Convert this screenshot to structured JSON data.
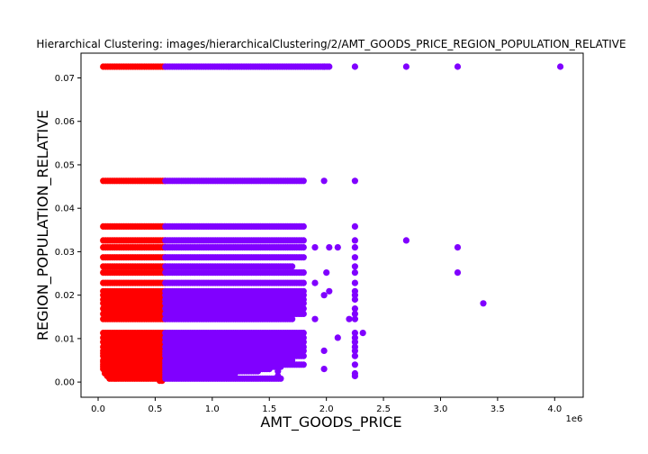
{
  "chart_data": {
    "type": "scatter",
    "title": "Hierarchical Clustering: images/hierarchicalClustering/2/AMT_GOODS_PRICE_REGION_POPULATION_RELATIVE",
    "xlabel": "AMT_GOODS_PRICE",
    "ylabel": "REGION_POPULATION_RELATIVE",
    "x_offset_text": "1e6",
    "xlim": [
      -150000,
      4250000
    ],
    "ylim": [
      -0.0035,
      0.0757
    ],
    "x_ticks": [
      0,
      500000,
      1000000,
      1500000,
      2000000,
      2500000,
      3000000,
      3500000,
      4000000
    ],
    "x_tick_labels": [
      "0.0",
      "0.5",
      "1.0",
      "1.5",
      "2.0",
      "2.5",
      "3.0",
      "3.5",
      "4.0"
    ],
    "y_ticks": [
      0.0,
      0.01,
      0.02,
      0.03,
      0.04,
      0.05,
      0.06,
      0.07
    ],
    "y_tick_labels": [
      "0.00",
      "0.01",
      "0.02",
      "0.03",
      "0.04",
      "0.05",
      "0.06",
      "0.07"
    ],
    "grid": false,
    "legend": "none",
    "colors": {
      "cluster_low_price": "#ff0000",
      "cluster_high_price": "#8000ff"
    },
    "series": [
      {
        "color": "#ff0000",
        "bands": [
          {
            "y": 0.0726,
            "x_min": 45000,
            "x_max": 585000
          },
          {
            "y": 0.0463,
            "x_min": 45000,
            "x_max": 585000
          },
          {
            "y": 0.0358,
            "x_min": 45000,
            "x_max": 585000
          },
          {
            "y": 0.0326,
            "x_min": 45000,
            "x_max": 585000
          },
          {
            "y": 0.031,
            "x_min": 45000,
            "x_max": 585000
          },
          {
            "y": 0.0287,
            "x_min": 45000,
            "x_max": 585000
          },
          {
            "y": 0.0266,
            "x_min": 45000,
            "x_max": 585000
          },
          {
            "y": 0.0252,
            "x_min": 45000,
            "x_max": 585000
          },
          {
            "y": 0.0228,
            "x_min": 45000,
            "x_max": 585000
          },
          {
            "y": 0.0209,
            "x_min": 45000,
            "x_max": 585000
          },
          {
            "y": 0.02,
            "x_min": 45000,
            "x_max": 585000
          },
          {
            "y": 0.019,
            "x_min": 45000,
            "x_max": 585000
          },
          {
            "y": 0.0181,
            "x_min": 45000,
            "x_max": 585000
          },
          {
            "y": 0.0169,
            "x_min": 45000,
            "x_max": 585000
          },
          {
            "y": 0.0157,
            "x_min": 45000,
            "x_max": 585000
          },
          {
            "y": 0.0145,
            "x_min": 45000,
            "x_max": 585000
          },
          {
            "y": 0.0113,
            "x_min": 45000,
            "x_max": 585000
          },
          {
            "y": 0.0102,
            "x_min": 45000,
            "x_max": 585000
          },
          {
            "y": 0.0092,
            "x_min": 45000,
            "x_max": 585000
          },
          {
            "y": 0.0081,
            "x_min": 45000,
            "x_max": 585000
          },
          {
            "y": 0.0072,
            "x_min": 45000,
            "x_max": 585000
          },
          {
            "y": 0.0066,
            "x_min": 45000,
            "x_max": 585000
          },
          {
            "y": 0.006,
            "x_min": 45000,
            "x_max": 585000
          },
          {
            "y": 0.005,
            "x_min": 45000,
            "x_max": 585000
          },
          {
            "y": 0.0046,
            "x_min": 45000,
            "x_max": 585000
          },
          {
            "y": 0.004,
            "x_min": 45000,
            "x_max": 585000
          },
          {
            "y": 0.0035,
            "x_min": 45000,
            "x_max": 585000
          },
          {
            "y": 0.003,
            "x_min": 45000,
            "x_max": 585000
          },
          {
            "y": 0.0025,
            "x_min": 60000,
            "x_max": 585000
          },
          {
            "y": 0.002,
            "x_min": 60000,
            "x_max": 585000
          },
          {
            "y": 0.0014,
            "x_min": 80000,
            "x_max": 585000
          },
          {
            "y": 0.0008,
            "x_min": 100000,
            "x_max": 560000
          },
          {
            "y": 0.0003,
            "x_min": 540000,
            "x_max": 560000
          }
        ]
      },
      {
        "color": "#8000ff",
        "bands": [
          {
            "y": 0.0726,
            "x_min": 590000,
            "x_max": 2025000
          },
          {
            "y": 0.0463,
            "x_min": 590000,
            "x_max": 1800000
          },
          {
            "y": 0.0358,
            "x_min": 590000,
            "x_max": 1800000
          },
          {
            "y": 0.0326,
            "x_min": 590000,
            "x_max": 1800000
          },
          {
            "y": 0.031,
            "x_min": 590000,
            "x_max": 1800000
          },
          {
            "y": 0.0287,
            "x_min": 590000,
            "x_max": 1800000
          },
          {
            "y": 0.0266,
            "x_min": 590000,
            "x_max": 1700000
          },
          {
            "y": 0.0252,
            "x_min": 590000,
            "x_max": 1800000
          },
          {
            "y": 0.0228,
            "x_min": 590000,
            "x_max": 1800000
          },
          {
            "y": 0.0209,
            "x_min": 590000,
            "x_max": 1800000
          },
          {
            "y": 0.02,
            "x_min": 590000,
            "x_max": 1800000
          },
          {
            "y": 0.019,
            "x_min": 590000,
            "x_max": 1800000
          },
          {
            "y": 0.0181,
            "x_min": 590000,
            "x_max": 1800000
          },
          {
            "y": 0.0169,
            "x_min": 590000,
            "x_max": 1800000
          },
          {
            "y": 0.0157,
            "x_min": 590000,
            "x_max": 1800000
          },
          {
            "y": 0.0145,
            "x_min": 590000,
            "x_max": 1700000
          },
          {
            "y": 0.0113,
            "x_min": 590000,
            "x_max": 1800000
          },
          {
            "y": 0.0102,
            "x_min": 590000,
            "x_max": 1800000
          },
          {
            "y": 0.0092,
            "x_min": 590000,
            "x_max": 1800000
          },
          {
            "y": 0.0081,
            "x_min": 590000,
            "x_max": 1800000
          },
          {
            "y": 0.0072,
            "x_min": 590000,
            "x_max": 1800000
          },
          {
            "y": 0.0066,
            "x_min": 590000,
            "x_max": 1700000
          },
          {
            "y": 0.006,
            "x_min": 590000,
            "x_max": 1800000
          },
          {
            "y": 0.005,
            "x_min": 590000,
            "x_max": 1700000
          },
          {
            "y": 0.0046,
            "x_min": 590000,
            "x_max": 1600000
          },
          {
            "y": 0.004,
            "x_min": 590000,
            "x_max": 1800000
          },
          {
            "y": 0.0035,
            "x_min": 590000,
            "x_max": 1600000
          },
          {
            "y": 0.003,
            "x_min": 590000,
            "x_max": 1500000
          },
          {
            "y": 0.0025,
            "x_min": 590000,
            "x_max": 1400000
          },
          {
            "y": 0.002,
            "x_min": 590000,
            "x_max": 1200000
          },
          {
            "y": 0.0014,
            "x_min": 590000,
            "x_max": 900000
          },
          {
            "y": 0.0008,
            "x_min": 590000,
            "x_max": 1600000
          }
        ],
        "points": [
          {
            "x": 2250000,
            "y": 0.0726
          },
          {
            "x": 2700000,
            "y": 0.0726
          },
          {
            "x": 3150000,
            "y": 0.0726
          },
          {
            "x": 4050000,
            "y": 0.0726
          },
          {
            "x": 2250000,
            "y": 0.0463
          },
          {
            "x": 2250000,
            "y": 0.0358
          },
          {
            "x": 2250000,
            "y": 0.0326
          },
          {
            "x": 2700000,
            "y": 0.0326
          },
          {
            "x": 2025000,
            "y": 0.031
          },
          {
            "x": 2100000,
            "y": 0.031
          },
          {
            "x": 2250000,
            "y": 0.031
          },
          {
            "x": 3150000,
            "y": 0.031
          },
          {
            "x": 2250000,
            "y": 0.0287
          },
          {
            "x": 2250000,
            "y": 0.0266
          },
          {
            "x": 2250000,
            "y": 0.0252
          },
          {
            "x": 2000000,
            "y": 0.0252
          },
          {
            "x": 3150000,
            "y": 0.0252
          },
          {
            "x": 2250000,
            "y": 0.0228
          },
          {
            "x": 2250000,
            "y": 0.0209
          },
          {
            "x": 2250000,
            "y": 0.02
          },
          {
            "x": 2250000,
            "y": 0.019
          },
          {
            "x": 3375000,
            "y": 0.0181
          },
          {
            "x": 2250000,
            "y": 0.0169
          },
          {
            "x": 2250000,
            "y": 0.0157
          },
          {
            "x": 2200000,
            "y": 0.0145
          },
          {
            "x": 2250000,
            "y": 0.0145
          },
          {
            "x": 2250000,
            "y": 0.0113
          },
          {
            "x": 2320000,
            "y": 0.0113
          },
          {
            "x": 2250000,
            "y": 0.0102
          },
          {
            "x": 2250000,
            "y": 0.0092
          },
          {
            "x": 2250000,
            "y": 0.0081
          },
          {
            "x": 2250000,
            "y": 0.0072
          },
          {
            "x": 2250000,
            "y": 0.006
          },
          {
            "x": 1980000,
            "y": 0.0072
          },
          {
            "x": 2250000,
            "y": 0.004
          },
          {
            "x": 1980000,
            "y": 0.003
          },
          {
            "x": 2250000,
            "y": 0.002
          },
          {
            "x": 2250000,
            "y": 0.0014
          },
          {
            "x": 1575000,
            "y": 0.0025
          },
          {
            "x": 1575000,
            "y": 0.0014
          },
          {
            "x": 1980000,
            "y": 0.02
          },
          {
            "x": 2025000,
            "y": 0.0209
          },
          {
            "x": 1900000,
            "y": 0.0145
          },
          {
            "x": 2100000,
            "y": 0.0102
          },
          {
            "x": 1900000,
            "y": 0.0228
          },
          {
            "x": 1980000,
            "y": 0.0463
          },
          {
            "x": 1980000,
            "y": 0.0726
          },
          {
            "x": 1900000,
            "y": 0.031
          }
        ]
      }
    ]
  }
}
